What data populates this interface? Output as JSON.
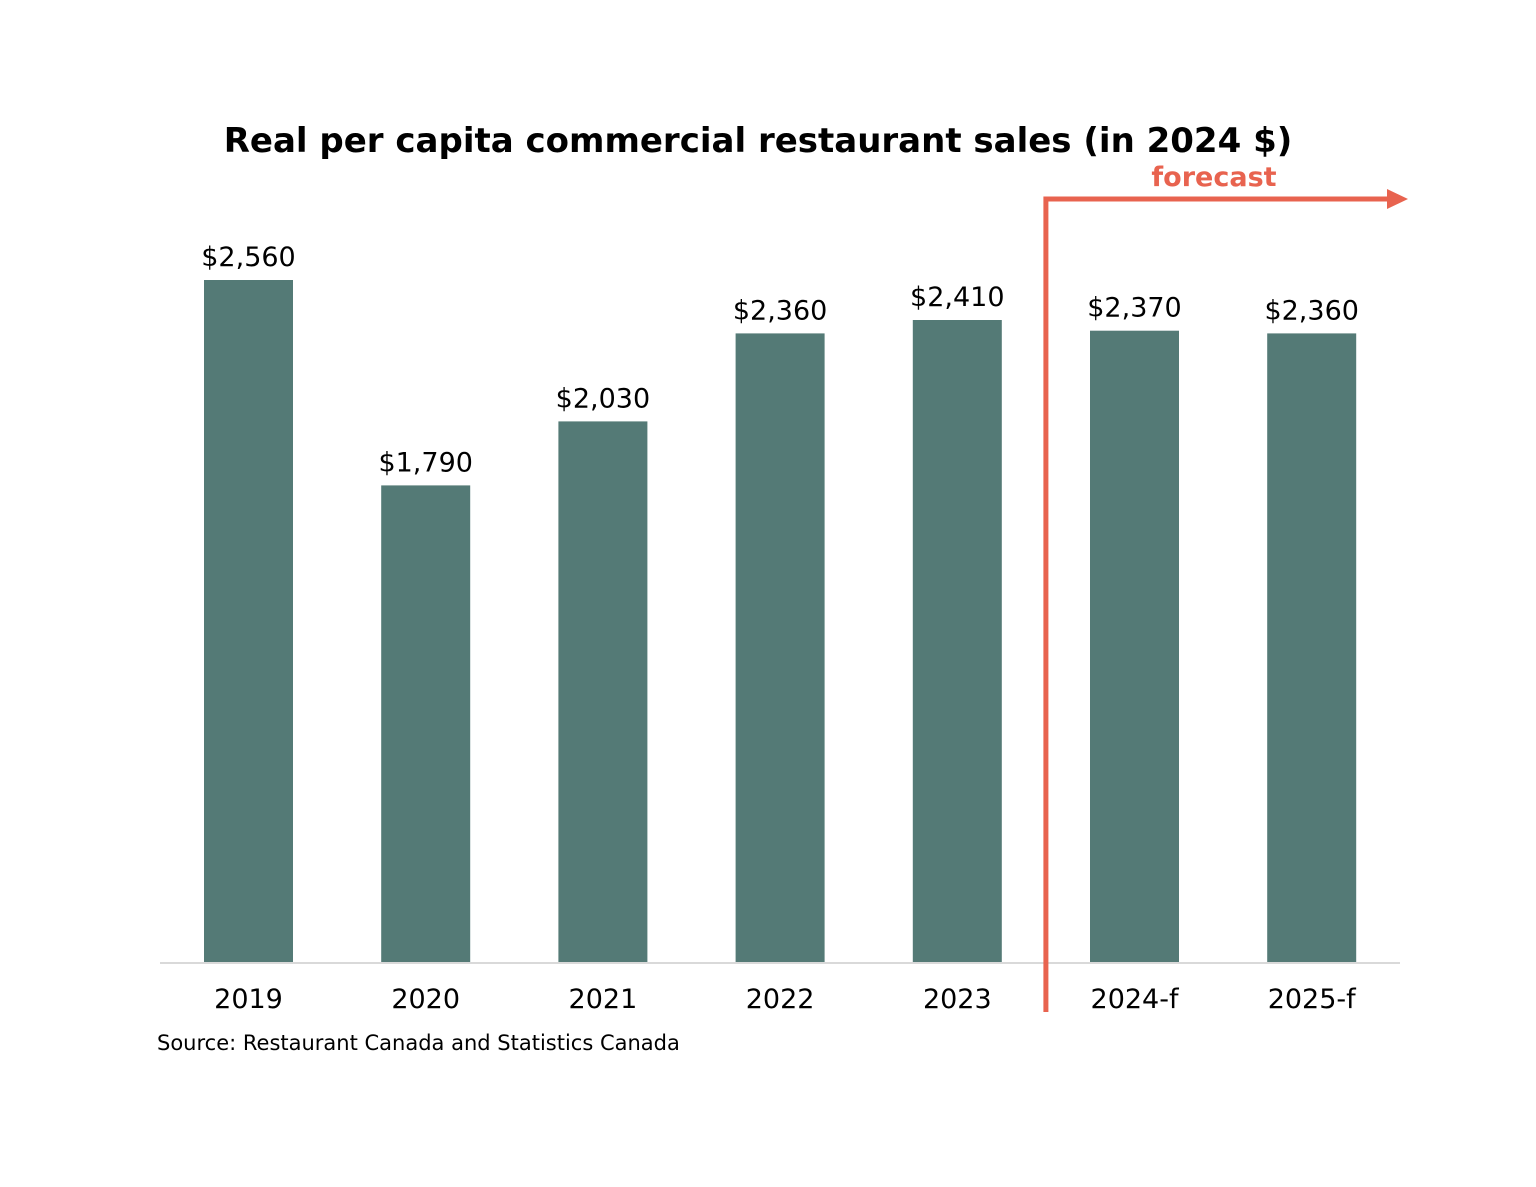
{
  "colors": {
    "bar": "#547a76",
    "forecast": "#e8634f",
    "axis": "#d9d9d9"
  },
  "chart_data": {
    "type": "bar",
    "title": "Real per capita commercial restaurant sales (in 2024 $)",
    "categories": [
      "2019",
      "2020",
      "2021",
      "2022",
      "2023",
      "2024-f",
      "2025-f"
    ],
    "values": [
      2560,
      1790,
      2030,
      2360,
      2410,
      2370,
      2360
    ],
    "value_labels": [
      "$2,560",
      "$1,790",
      "$2,030",
      "$2,360",
      "$2,410",
      "$2,370",
      "$2,360"
    ],
    "ylim": [
      0,
      2560
    ],
    "grid": false,
    "legend": "none",
    "forecast_label": "forecast",
    "forecast_start_category": "2024-f",
    "source": "Source: Restaurant Canada and Statistics Canada"
  }
}
